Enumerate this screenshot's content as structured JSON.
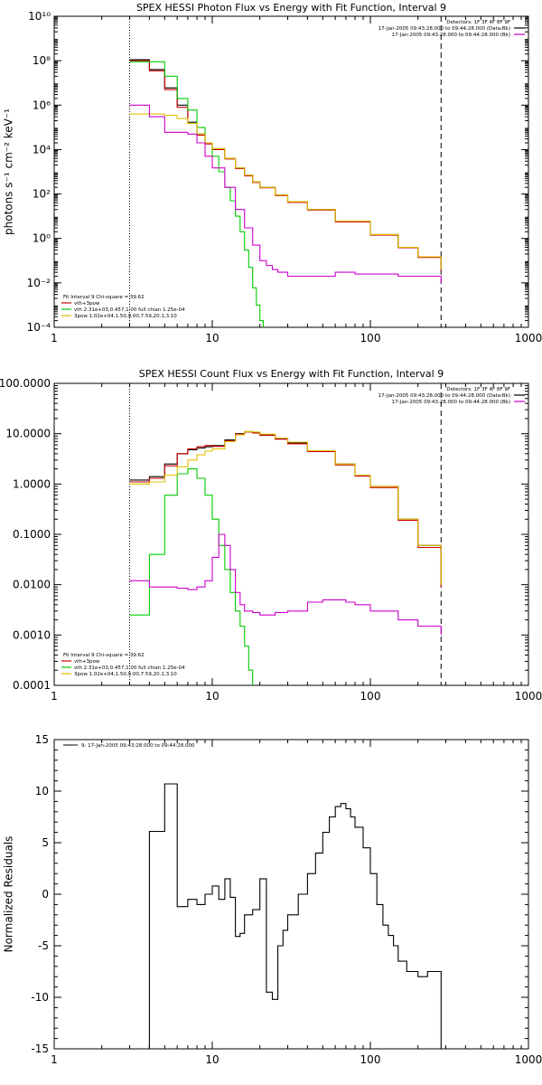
{
  "chart_data": [
    {
      "type": "line",
      "title": "SPEX HESSI Photon Flux vs Energy with Fit Function, Interval 9",
      "ylabel": "photons s⁻¹ cm⁻² keV⁻¹",
      "xlabel": "",
      "xscale": "log",
      "yscale": "log",
      "xlim": [
        1,
        1000
      ],
      "ylim_exp": [
        -4,
        10
      ],
      "x_ticks": [
        "1",
        "10",
        "100",
        "1000"
      ],
      "y_ticks": [
        "10⁻⁴",
        "10⁻²",
        "10⁰",
        "10²",
        "10⁴",
        "10⁶",
        "10⁸",
        "10¹⁰"
      ],
      "vlines": [
        {
          "x": 3,
          "color": "#000000",
          "style": "dotted"
        },
        {
          "x": 280,
          "color": "#000000",
          "style": "dashed"
        }
      ],
      "legend_top": [
        {
          "text": "Detectors: 1F 3F 4F 8F 9F",
          "color": ""
        },
        {
          "text": "17-Jan-2005 09:43:28.000 to 09:44:28.000 (Data-Bk)",
          "color": "#000000"
        },
        {
          "text": "17-Jan-2005 09:43:28.000 to 09:44:28.000 (Bk)",
          "color": "#cc00cc"
        }
      ],
      "legend_bottom": [
        {
          "text": "Fit Interval 9   Chi-square = 39.62",
          "color": ""
        },
        {
          "text": "vth+3pow",
          "color": "#cc0000"
        },
        {
          "text": "vth 2.31e+03,0.457,1.00  full chian 1.25e-04",
          "color": "#00cc00"
        },
        {
          "text": "3pow 1.02e+04,1.50,9.00,7.59,20.1,3.10",
          "color": "#e0c000"
        }
      ],
      "series": [
        {
          "color": "#000000",
          "x": [
            3,
            4,
            5,
            6,
            7,
            8,
            9,
            10,
            12,
            14,
            16,
            18,
            20,
            25,
            30,
            40,
            60,
            100,
            150,
            200,
            280
          ],
          "y": [
            110000000.0,
            40000000.0,
            6000000.0,
            1000000.0,
            170000.0,
            50000.0,
            20000.0,
            11000.0,
            4000.0,
            1500.0,
            700,
            350,
            200,
            90,
            45,
            20,
            6,
            1.5,
            0.4,
            0.15,
            0.04
          ]
        },
        {
          "color": "#cc0000",
          "x": [
            3,
            4,
            5,
            6,
            7,
            8,
            9,
            10,
            12,
            14,
            16,
            18,
            20,
            25,
            30,
            40,
            60,
            100,
            150,
            200,
            280
          ],
          "y": [
            100000000.0,
            35000000.0,
            5000000.0,
            800000.0,
            150000.0,
            45000.0,
            18000.0,
            10000.0,
            3800.0,
            1400.0,
            650,
            330,
            190,
            85,
            42,
            19,
            5.5,
            1.4,
            0.38,
            0.14,
            0.035
          ]
        },
        {
          "color": "#00cc00",
          "x": [
            3,
            4,
            5,
            6,
            7,
            8,
            9,
            10,
            11,
            12,
            13,
            14,
            15,
            16,
            17,
            18,
            19,
            20,
            21
          ],
          "y": [
            90000000.0,
            90000000.0,
            20000000.0,
            2000000.0,
            600000.0,
            100000.0,
            20000.0,
            5000,
            1000,
            200,
            50,
            10,
            2,
            0.3,
            0.05,
            0.006,
            0.001,
            0.0002,
            0.0001
          ]
        },
        {
          "color": "#e0c000",
          "x": [
            3,
            4,
            5,
            6,
            7,
            8,
            9,
            10,
            12,
            14,
            16,
            18,
            20,
            25,
            30,
            40,
            60,
            100,
            150,
            200,
            280
          ],
          "y": [
            400000.0,
            400000.0,
            350000.0,
            250000.0,
            150000.0,
            50000.0,
            20000.0,
            11000.0,
            4000.0,
            1500.0,
            700,
            350,
            200,
            90,
            45,
            20,
            6,
            1.5,
            0.4,
            0.15,
            0.04
          ]
        },
        {
          "color": "#cc00cc",
          "x": [
            3,
            4,
            5,
            6,
            7,
            8,
            9,
            10,
            12,
            14,
            16,
            18,
            20,
            22,
            24,
            26,
            28,
            30,
            40,
            60,
            80,
            100,
            150,
            200,
            280
          ],
          "y": [
            1000000.0,
            300000.0,
            60000.0,
            60000.0,
            50000.0,
            20000.0,
            5000.0,
            1500.0,
            200,
            20,
            3,
            0.5,
            0.1,
            0.06,
            0.04,
            0.03,
            0.03,
            0.02,
            0.02,
            0.03,
            0.025,
            0.025,
            0.02,
            0.02,
            0.01
          ]
        }
      ]
    },
    {
      "type": "line",
      "title": "SPEX HESSI Count Flux vs Energy with Fit Function, Interval 9",
      "ylabel": "",
      "xlabel": "",
      "xscale": "log",
      "yscale": "log",
      "xlim": [
        1,
        1000
      ],
      "ylim_exp": [
        -4,
        2
      ],
      "x_ticks": [
        "1",
        "10",
        "100",
        "1000"
      ],
      "y_ticks": [
        "0.0001",
        "0.0010",
        "0.0100",
        "0.1000",
        "1.0000",
        "10.0000",
        "100.0000"
      ],
      "vlines": [
        {
          "x": 3,
          "color": "#000000",
          "style": "dotted"
        },
        {
          "x": 280,
          "color": "#000000",
          "style": "dashed"
        }
      ],
      "legend_top": [
        {
          "text": "Detectors: 1F 3F 4F 8F 9F",
          "color": ""
        },
        {
          "text": "17-Jan-2005 09:43:28.000 to 09:44:28.000 (Data-Bk)",
          "color": "#000000"
        },
        {
          "text": "17-Jan-2005 09:43:28.000 to 09:44:28.000 (Bk)",
          "color": "#cc00cc"
        }
      ],
      "legend_bottom": [
        {
          "text": "Fit Interval 9   Chi-square = 39.62",
          "color": ""
        },
        {
          "text": "vth+3pow",
          "color": "#cc0000"
        },
        {
          "text": "vth 2.31e+03,0.457,1.00  full chian 1.25e-04",
          "color": "#00cc00"
        },
        {
          "text": "3pow 1.02e+04,1.50,9.00,7.59,20.1,3.10",
          "color": "#e0c000"
        }
      ],
      "series": [
        {
          "color": "#000000",
          "x": [
            3,
            4,
            5,
            6,
            7,
            8,
            9,
            10,
            12,
            14,
            16,
            18,
            20,
            25,
            30,
            40,
            60,
            80,
            100,
            150,
            200,
            280
          ],
          "y": [
            1.2,
            1.4,
            2.5,
            4,
            4.8,
            5.2,
            5.5,
            5.8,
            7.5,
            10,
            11,
            10.5,
            9.5,
            8,
            6.5,
            4.5,
            2.5,
            1.5,
            0.9,
            0.2,
            0.06,
            0.01
          ]
        },
        {
          "color": "#cc0000",
          "x": [
            3,
            4,
            5,
            6,
            7,
            8,
            9,
            10,
            12,
            14,
            16,
            18,
            20,
            25,
            30,
            40,
            60,
            80,
            100,
            150,
            200,
            280
          ],
          "y": [
            1.1,
            1.3,
            2.3,
            4,
            5,
            5.5,
            5.8,
            5.6,
            7.2,
            9.8,
            10.8,
            10.3,
            9.3,
            7.8,
            6.3,
            4.4,
            2.4,
            1.45,
            0.85,
            0.19,
            0.055,
            0.009
          ]
        },
        {
          "color": "#00cc00",
          "x": [
            3,
            4,
            5,
            6,
            7,
            8,
            9,
            10,
            11,
            12,
            13,
            14,
            15,
            16,
            17,
            18
          ],
          "y": [
            0.0025,
            0.04,
            0.6,
            1.6,
            2.0,
            1.3,
            0.6,
            0.2,
            0.06,
            0.02,
            0.007,
            0.003,
            0.0015,
            0.0006,
            0.0002,
            0.0001
          ]
        },
        {
          "color": "#e0c000",
          "x": [
            3,
            4,
            5,
            6,
            7,
            8,
            9,
            10,
            12,
            14,
            16,
            18,
            20,
            25,
            30,
            40,
            60,
            80,
            100,
            150,
            200,
            280
          ],
          "y": [
            1.0,
            1.1,
            1.5,
            2.2,
            3,
            3.8,
            4.5,
            5,
            7,
            9.5,
            11,
            10.8,
            9.8,
            8.2,
            6.8,
            4.6,
            2.5,
            1.5,
            0.9,
            0.2,
            0.06,
            0.01
          ]
        },
        {
          "color": "#cc00cc",
          "x": [
            3,
            4,
            5,
            6,
            7,
            8,
            9,
            10,
            11,
            12,
            13,
            14,
            15,
            16,
            18,
            20,
            25,
            30,
            40,
            50,
            60,
            70,
            80,
            100,
            150,
            200,
            280
          ],
          "y": [
            0.012,
            0.009,
            0.009,
            0.0085,
            0.008,
            0.009,
            0.012,
            0.035,
            0.1,
            0.06,
            0.02,
            0.007,
            0.004,
            0.003,
            0.0028,
            0.0025,
            0.0028,
            0.003,
            0.0045,
            0.005,
            0.005,
            0.0045,
            0.004,
            0.003,
            0.002,
            0.0015,
            0.001
          ]
        }
      ]
    },
    {
      "type": "line",
      "title": "",
      "ylabel": "Normalized Residuals",
      "xlabel": "",
      "xscale": "log",
      "yscale": "linear",
      "xlim": [
        1,
        1000
      ],
      "ylim": [
        -15,
        15
      ],
      "x_ticks": [
        "1",
        "10",
        "100",
        "1000"
      ],
      "y_ticks": [
        "-15",
        "-10",
        "-5",
        "0",
        "5",
        "10",
        "15"
      ],
      "legend_top": [
        {
          "text": "9: 17-Jan-2005 09:43:28.000 to 09:44:28.000",
          "color": "#000000"
        }
      ],
      "series": [
        {
          "color": "#000000",
          "x": [
            3,
            4,
            5,
            6,
            7,
            8,
            9,
            10,
            11,
            12,
            13,
            14,
            15,
            16,
            18,
            20,
            22,
            24,
            26,
            28,
            30,
            35,
            40,
            45,
            50,
            55,
            60,
            65,
            70,
            75,
            80,
            90,
            100,
            110,
            120,
            130,
            140,
            150,
            170,
            200,
            230,
            280
          ],
          "y": [
            -15,
            6.1,
            10.7,
            -1.2,
            -0.5,
            -1,
            0,
            0.8,
            -0.5,
            1.5,
            -0.3,
            -4.1,
            -3.8,
            -2,
            -1.5,
            1.5,
            -9.5,
            -10.2,
            -5,
            -3.5,
            -2,
            0,
            2,
            4,
            6,
            7.5,
            8.5,
            8.8,
            8.3,
            7.5,
            6.5,
            4.5,
            2,
            -1,
            -3,
            -4,
            -5,
            -6.5,
            -7.5,
            -8,
            -7.5,
            -15
          ]
        }
      ]
    }
  ]
}
